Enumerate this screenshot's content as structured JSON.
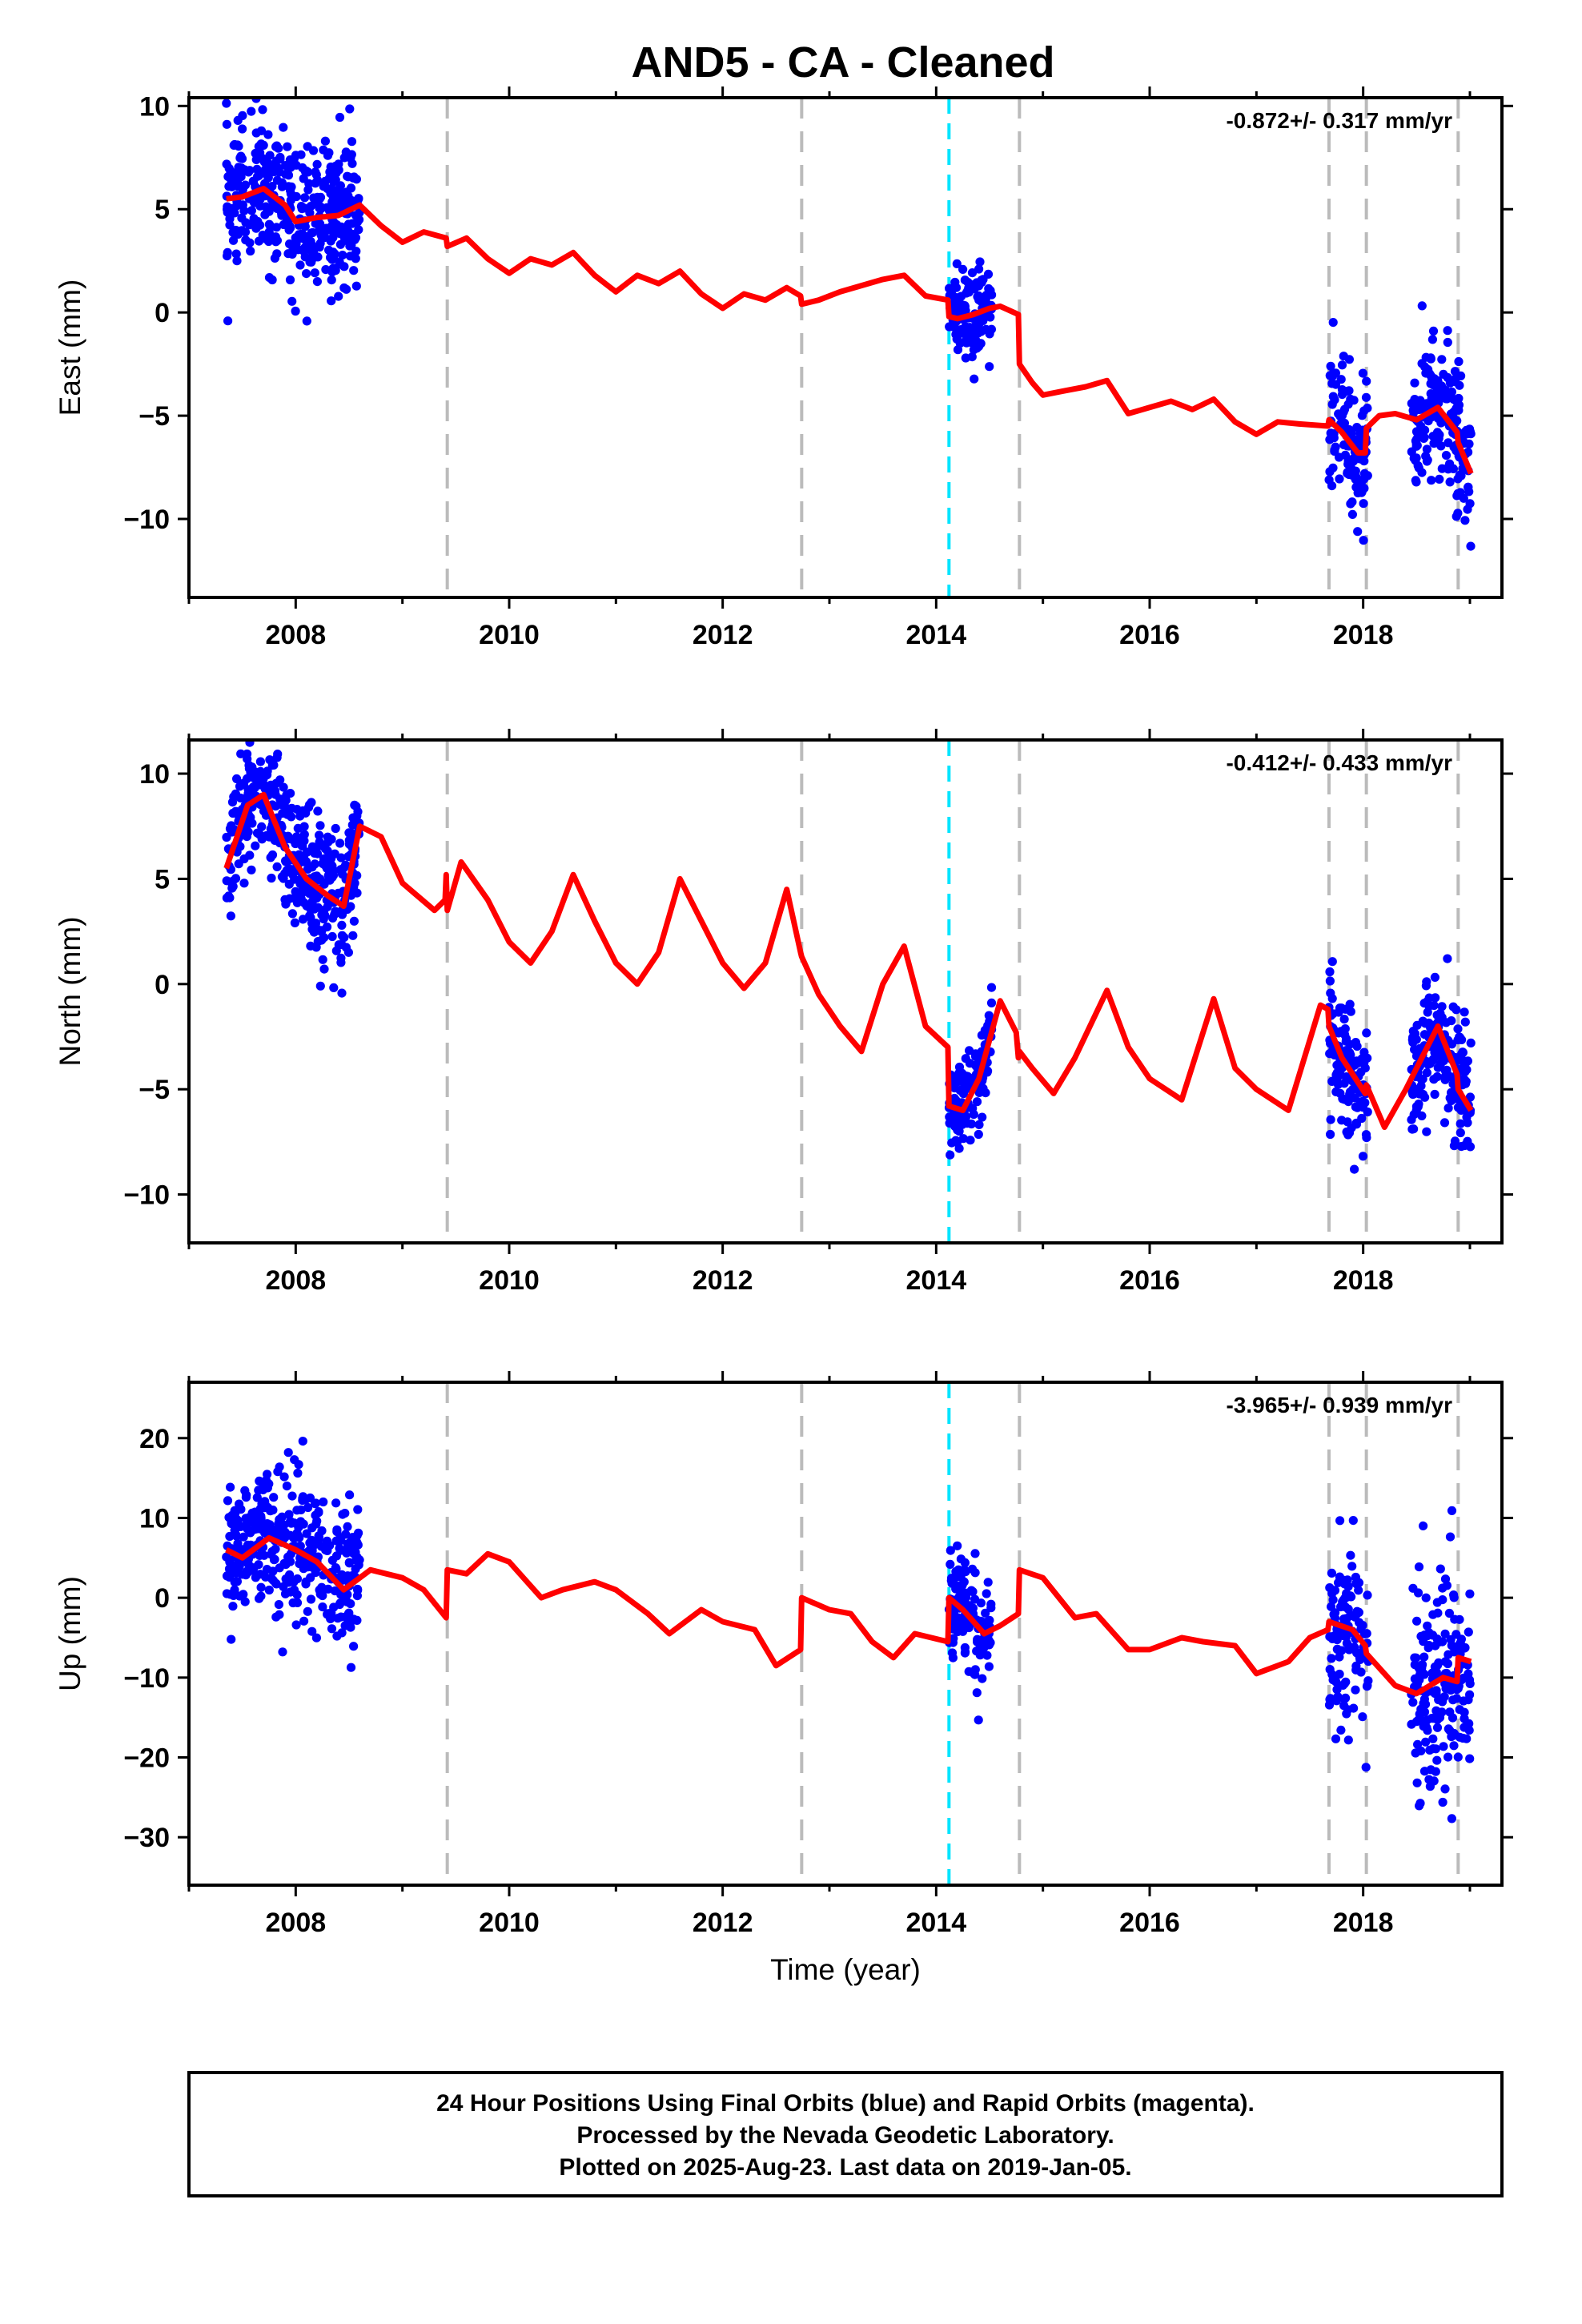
{
  "title": "AND5  - CA - Cleaned",
  "footer": {
    "lines": [
      "24 Hour Positions Using Final Orbits (blue) and Rapid Orbits (magenta).",
      "Processed by the Nevada Geodetic Laboratory.",
      "Plotted on 2025-Aug-23. Last data on 2019-Jan-05."
    ]
  },
  "colors": {
    "points": "#0000ff",
    "model": "#ff0000",
    "steps_gray": "#bbbbbb",
    "step_cyan": "#00e5ff",
    "frame": "#000000"
  },
  "chart_data": [
    {
      "type": "scatter",
      "component": "east",
      "ylabel": "East (mm)",
      "xlabel": "",
      "xlim": [
        2007.0,
        2019.3
      ],
      "ylim": [
        -13.8,
        10.4
      ],
      "xticks": [
        2008,
        2010,
        2012,
        2014,
        2016,
        2018
      ],
      "yticks": [
        -10,
        -5,
        0,
        5,
        10
      ],
      "rate_label": "-0.872+/- 0.317 mm/yr",
      "steps_gray": [
        2009.42,
        2012.74,
        2014.78,
        2017.68,
        2018.03,
        2018.89
      ],
      "step_cyan": 2014.12,
      "data_segments": [
        {
          "start": 2007.35,
          "end": 2008.6,
          "spread": 1.7
        },
        {
          "start": 2014.12,
          "end": 2014.52,
          "spread": 1.1
        },
        {
          "start": 2017.68,
          "end": 2018.05,
          "spread": 1.6
        },
        {
          "start": 2018.45,
          "end": 2019.01,
          "spread": 1.7
        }
      ],
      "model": {
        "x": [
          2007.35,
          2007.5,
          2007.7,
          2007.9,
          2008.0,
          2008.2,
          2008.4,
          2008.6,
          2008.8,
          2009.0,
          2009.2,
          2009.41,
          2009.42,
          2009.6,
          2009.8,
          2010.0,
          2010.2,
          2010.4,
          2010.6,
          2010.8,
          2011.0,
          2011.2,
          2011.4,
          2011.6,
          2011.8,
          2012.0,
          2012.2,
          2012.4,
          2012.6,
          2012.73,
          2012.74,
          2012.9,
          2013.1,
          2013.3,
          2013.5,
          2013.7,
          2013.9,
          2014.11,
          2014.12,
          2014.2,
          2014.35,
          2014.5,
          2014.6,
          2014.77,
          2014.78,
          2014.9,
          2015.0,
          2015.2,
          2015.4,
          2015.6,
          2015.8,
          2016.0,
          2016.2,
          2016.4,
          2016.6,
          2016.8,
          2017.0,
          2017.2,
          2017.4,
          2017.67,
          2017.68,
          2017.8,
          2017.95,
          2018.02,
          2018.03,
          2018.15,
          2018.3,
          2018.5,
          2018.7,
          2018.88,
          2018.89,
          2019.01
        ],
        "y": [
          5.5,
          5.6,
          6.0,
          5.2,
          4.4,
          4.6,
          4.7,
          5.2,
          4.2,
          3.4,
          3.9,
          3.6,
          3.2,
          3.6,
          2.6,
          1.9,
          2.6,
          2.3,
          2.9,
          1.8,
          1.0,
          1.8,
          1.4,
          2.0,
          0.9,
          0.2,
          0.9,
          0.6,
          1.2,
          0.8,
          0.4,
          0.6,
          1.0,
          1.3,
          1.6,
          1.8,
          0.8,
          0.6,
          -0.2,
          -0.3,
          -0.1,
          0.2,
          0.3,
          -0.1,
          -2.5,
          -3.4,
          -4.0,
          -3.8,
          -3.6,
          -3.3,
          -4.9,
          -4.6,
          -4.3,
          -4.7,
          -4.2,
          -5.3,
          -5.9,
          -5.3,
          -5.4,
          -5.5,
          -5.2,
          -5.8,
          -6.8,
          -6.8,
          -5.6,
          -5.0,
          -4.9,
          -5.2,
          -4.6,
          -5.8,
          -6.3,
          -7.8
        ]
      }
    },
    {
      "type": "scatter",
      "component": "north",
      "ylabel": "North (mm)",
      "xlabel": "",
      "xlim": [
        2007.0,
        2019.3
      ],
      "ylim": [
        -12.3,
        11.6
      ],
      "xticks": [
        2008,
        2010,
        2012,
        2014,
        2016,
        2018
      ],
      "yticks": [
        -10,
        -5,
        0,
        5,
        10
      ],
      "rate_label": "-0.412+/- 0.433 mm/yr",
      "steps_gray": [
        2009.42,
        2012.74,
        2014.78,
        2017.68,
        2018.03,
        2018.89
      ],
      "step_cyan": 2014.12,
      "data_segments": [
        {
          "start": 2007.35,
          "end": 2008.6,
          "spread": 1.6
        },
        {
          "start": 2014.12,
          "end": 2014.52,
          "spread": 1.0
        },
        {
          "start": 2017.68,
          "end": 2018.05,
          "spread": 1.5
        },
        {
          "start": 2018.45,
          "end": 2019.01,
          "spread": 1.6
        }
      ],
      "model": {
        "x": [
          2007.35,
          2007.55,
          2007.7,
          2007.9,
          2008.1,
          2008.3,
          2008.45,
          2008.6,
          2008.8,
          2009.0,
          2009.3,
          2009.4,
          2009.41,
          2009.42,
          2009.55,
          2009.8,
          2010.0,
          2010.2,
          2010.4,
          2010.6,
          2010.8,
          2011.0,
          2011.2,
          2011.4,
          2011.6,
          2011.8,
          2012.0,
          2012.2,
          2012.4,
          2012.6,
          2012.73,
          2012.74,
          2012.9,
          2013.1,
          2013.3,
          2013.5,
          2013.7,
          2013.9,
          2014.11,
          2014.12,
          2014.25,
          2014.4,
          2014.6,
          2014.75,
          2014.77,
          2014.78,
          2014.9,
          2015.1,
          2015.3,
          2015.6,
          2015.8,
          2016.0,
          2016.3,
          2016.6,
          2016.8,
          2017.0,
          2017.3,
          2017.6,
          2017.67,
          2017.68,
          2017.8,
          2018.02,
          2018.03,
          2018.2,
          2018.4,
          2018.7,
          2018.88,
          2018.89,
          2019.01
        ],
        "y": [
          5.5,
          8.5,
          9.0,
          6.5,
          5.0,
          4.2,
          3.7,
          7.5,
          7.0,
          4.8,
          3.5,
          4.0,
          5.2,
          3.5,
          5.8,
          4.0,
          2.0,
          1.0,
          2.5,
          5.2,
          3.0,
          1.0,
          0.0,
          1.5,
          5.0,
          3.0,
          1.0,
          -0.2,
          1.0,
          4.5,
          1.5,
          1.3,
          -0.5,
          -2.0,
          -3.2,
          0.0,
          1.8,
          -2.0,
          -3.0,
          -5.8,
          -6.0,
          -4.5,
          -0.8,
          -2.3,
          -3.5,
          -3.2,
          -4.0,
          -5.2,
          -3.5,
          -0.3,
          -3.0,
          -4.5,
          -5.5,
          -0.7,
          -4.0,
          -5.0,
          -6.0,
          -1.0,
          -1.2,
          -2.0,
          -3.5,
          -5.2,
          -4.8,
          -6.8,
          -5.0,
          -2.0,
          -4.3,
          -5.0,
          -6.0
        ]
      }
    },
    {
      "type": "scatter",
      "component": "up",
      "ylabel": "Up (mm)",
      "xlabel": "Time (year)",
      "xlim": [
        2007.0,
        2019.3
      ],
      "ylim": [
        -36,
        27
      ],
      "xticks": [
        2008,
        2010,
        2012,
        2014,
        2016,
        2018
      ],
      "yticks": [
        -30,
        -20,
        -10,
        0,
        10,
        20
      ],
      "rate_label": "-3.965+/- 0.939 mm/yr",
      "steps_gray": [
        2009.42,
        2012.74,
        2014.78,
        2017.68,
        2018.03,
        2018.89
      ],
      "step_cyan": 2014.12,
      "data_segments": [
        {
          "start": 2007.35,
          "end": 2008.6,
          "spread": 4.5
        },
        {
          "start": 2014.12,
          "end": 2014.52,
          "spread": 3.5
        },
        {
          "start": 2017.68,
          "end": 2018.05,
          "spread": 5.5
        },
        {
          "start": 2018.45,
          "end": 2019.01,
          "spread": 7.5
        }
      ],
      "model": {
        "x": [
          2007.35,
          2007.5,
          2007.75,
          2008.0,
          2008.2,
          2008.45,
          2008.7,
          2009.0,
          2009.2,
          2009.41,
          2009.42,
          2009.6,
          2009.8,
          2010.0,
          2010.3,
          2010.5,
          2010.8,
          2011.0,
          2011.3,
          2011.5,
          2011.8,
          2012.0,
          2012.3,
          2012.5,
          2012.73,
          2012.74,
          2013.0,
          2013.2,
          2013.4,
          2013.6,
          2013.8,
          2014.11,
          2014.12,
          2014.25,
          2014.45,
          2014.6,
          2014.77,
          2014.78,
          2015.0,
          2015.3,
          2015.5,
          2015.8,
          2016.0,
          2016.3,
          2016.5,
          2016.8,
          2017.0,
          2017.3,
          2017.5,
          2017.67,
          2017.68,
          2017.9,
          2018.02,
          2018.03,
          2018.3,
          2018.5,
          2018.75,
          2018.88,
          2018.89,
          2019.01
        ],
        "y": [
          6.0,
          5.0,
          7.5,
          6.0,
          4.5,
          1.0,
          3.5,
          2.5,
          1.0,
          -2.5,
          3.5,
          3.0,
          5.5,
          4.5,
          0.0,
          1.0,
          2.0,
          1.0,
          -2.0,
          -4.5,
          -1.5,
          -3.0,
          -4.0,
          -8.5,
          -6.5,
          0.0,
          -1.5,
          -2.0,
          -5.5,
          -7.5,
          -4.5,
          -5.5,
          0.0,
          -1.5,
          -4.5,
          -3.5,
          -2.0,
          3.5,
          2.5,
          -2.5,
          -2.0,
          -6.5,
          -6.5,
          -5.0,
          -5.5,
          -6.0,
          -9.5,
          -8.0,
          -5.0,
          -4.0,
          -3.0,
          -4.0,
          -6.0,
          -7.0,
          -11.0,
          -12.0,
          -10.0,
          -10.5,
          -7.5,
          -8.0
        ]
      }
    }
  ]
}
